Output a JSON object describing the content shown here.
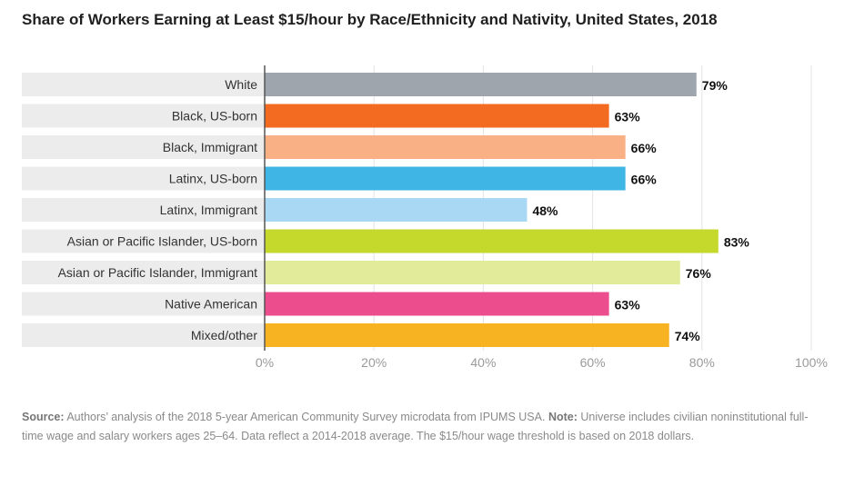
{
  "title": "Share of Workers Earning at Least $15/hour by Race/Ethnicity and Nativity, United States, 2018",
  "chart_data": {
    "type": "bar",
    "orientation": "horizontal",
    "categories": [
      "White",
      "Black, US-born",
      "Black, Immigrant",
      "Latinx, US-born",
      "Latinx, Immigrant",
      "Asian or Pacific Islander, US-born",
      "Asian or Pacific Islander, Immigrant",
      "Native American",
      "Mixed/other"
    ],
    "values": [
      79,
      63,
      66,
      66,
      48,
      83,
      76,
      63,
      74
    ],
    "value_labels": [
      "79%",
      "63%",
      "66%",
      "66%",
      "48%",
      "83%",
      "76%",
      "63%",
      "74%"
    ],
    "colors": [
      "#9ea5ad",
      "#f26b21",
      "#f8b084",
      "#3fb5e5",
      "#a9d8f4",
      "#c5d92d",
      "#e2eb9a",
      "#ec4d8d",
      "#f8b323"
    ],
    "xlim": [
      0,
      100
    ],
    "xticks": [
      "0%",
      "20%",
      "40%",
      "60%",
      "80%",
      "100%"
    ],
    "grid": true
  },
  "footer": {
    "source_label": "Source:",
    "source_text": " Authors’ analysis of the 2018 5-year American Community Survey microdata from IPUMS USA. ",
    "note_label": "Note:",
    "note_text": " Universe includes civilian noninstitutional full-time wage and salary workers ages 25–64. Data reflect a 2014-2018 average. The $15/hour wage threshold is based on 2018 dollars."
  }
}
